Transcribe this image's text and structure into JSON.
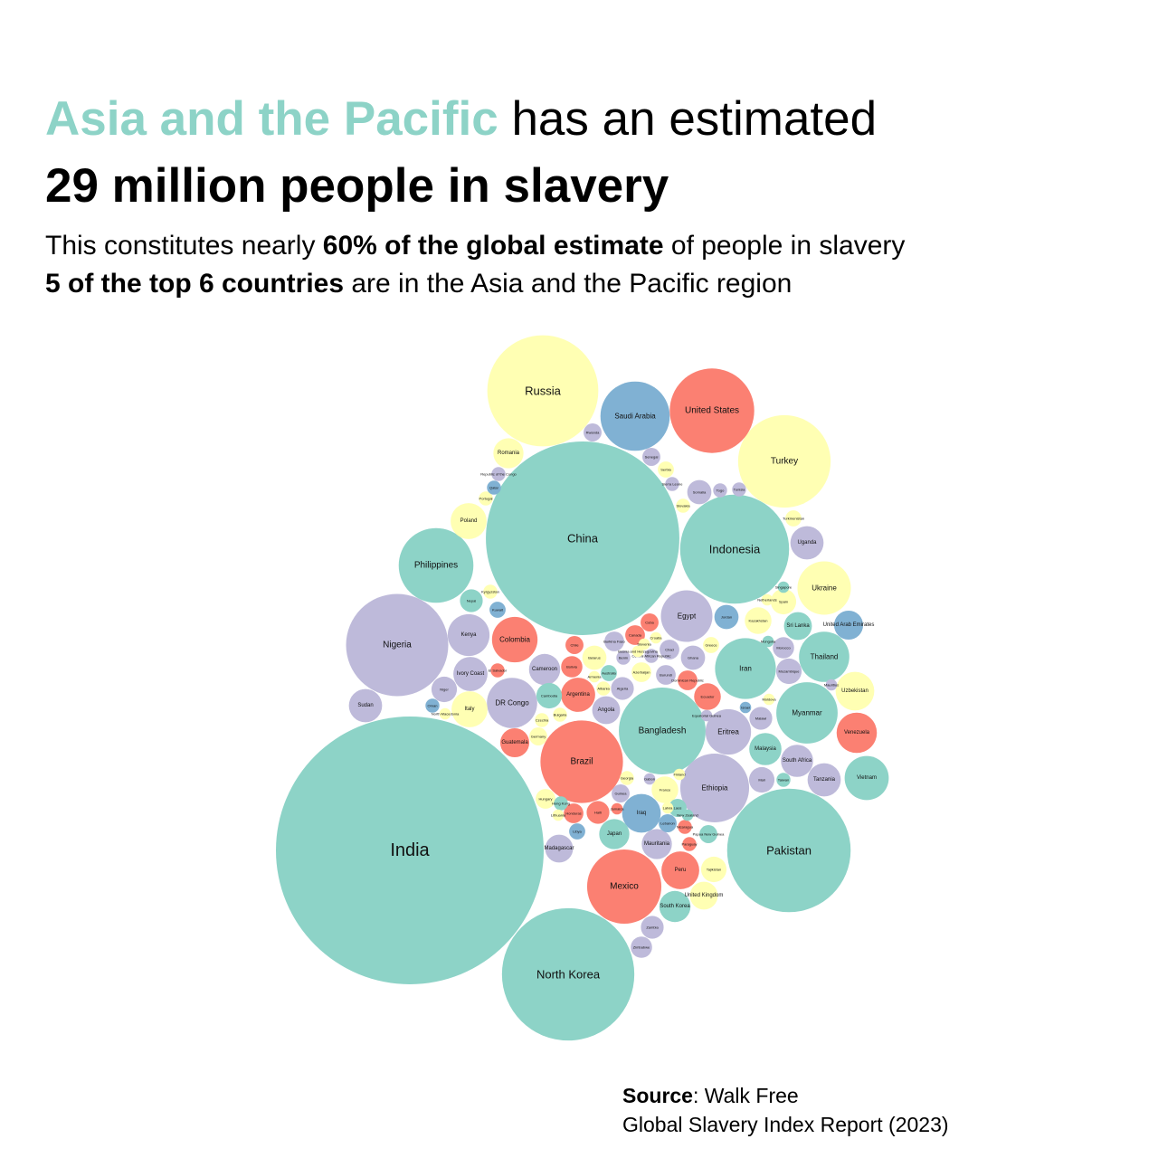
{
  "title": {
    "line1_highlight": "Asia and the Pacific",
    "line1_rest": " has an estimated",
    "line2": "29 million people in slavery"
  },
  "subtitle": {
    "line1_pre": "This constitutes nearly ",
    "line1_bold": "60% of the global estimate",
    "line1_post": " of people in slavery",
    "line2_bold": "5 of the top 6 countries",
    "line2_post": " are in the Asia and the Pacific region"
  },
  "source": {
    "label": "Source",
    "colon_text": ": Walk Free",
    "line2": "Global Slavery Index Report (2023)"
  },
  "colors": {
    "asia_pacific": "#8dd3c7",
    "europe_central_asia": "#ffffb3",
    "africa": "#bebada",
    "americas": "#fb8072",
    "arab_states": "#80b1d3"
  },
  "chart_data": {
    "type": "bubble",
    "size_encoding": "estimated number of people in modern slavery",
    "region_colors": {
      "asia_pacific": "#8dd3c7",
      "europe_central_asia": "#ffffb3",
      "africa": "#bebada",
      "americas": "#fb8072",
      "arab_states": "#80b1d3"
    },
    "bubbles": [
      {
        "name": "India",
        "region": "asia_pacific",
        "value": 11050
      },
      {
        "name": "China",
        "region": "asia_pacific",
        "value": 5770
      },
      {
        "name": "North Korea",
        "region": "asia_pacific",
        "value": 2700
      },
      {
        "name": "Pakistan",
        "region": "asia_pacific",
        "value": 2350
      },
      {
        "name": "Russia",
        "region": "europe_central_asia",
        "value": 1900
      },
      {
        "name": "Indonesia",
        "region": "asia_pacific",
        "value": 1830
      },
      {
        "name": "Nigeria",
        "region": "africa",
        "value": 1610
      },
      {
        "name": "Turkey",
        "region": "europe_central_asia",
        "value": 1320
      },
      {
        "name": "Bangladesh",
        "region": "asia_pacific",
        "value": 1160
      },
      {
        "name": "United States",
        "region": "americas",
        "value": 1100
      },
      {
        "name": "Brazil",
        "region": "americas",
        "value": 1050
      },
      {
        "name": "Mexico",
        "region": "americas",
        "value": 850
      },
      {
        "name": "Philippines",
        "region": "asia_pacific",
        "value": 860
      },
      {
        "name": "Ethiopia",
        "region": "africa",
        "value": 730
      },
      {
        "name": "Saudi Arabia",
        "region": "arab_states",
        "value": 740
      },
      {
        "name": "Myanmar",
        "region": "asia_pacific",
        "value": 580
      },
      {
        "name": "Iran",
        "region": "asia_pacific",
        "value": 570
      },
      {
        "name": "Egypt",
        "region": "africa",
        "value": 410
      },
      {
        "name": "DR Congo",
        "region": "africa",
        "value": 390
      },
      {
        "name": "Ukraine",
        "region": "europe_central_asia",
        "value": 440
      },
      {
        "name": "Thailand",
        "region": "asia_pacific",
        "value": 390
      },
      {
        "name": "Eritrea",
        "region": "africa",
        "value": 320
      },
      {
        "name": "Colombia",
        "region": "americas",
        "value": 320
      },
      {
        "name": "Vietnam",
        "region": "asia_pacific",
        "value": 300
      },
      {
        "name": "Venezuela",
        "region": "americas",
        "value": 250
      },
      {
        "name": "Uzbekistan",
        "region": "europe_central_asia",
        "value": 230
      },
      {
        "name": "Kenya",
        "region": "africa",
        "value": 270
      },
      {
        "name": "Iraq",
        "region": "arab_states",
        "value": 230
      },
      {
        "name": "Peru",
        "region": "americas",
        "value": 220
      },
      {
        "name": "Japan",
        "region": "asia_pacific",
        "value": 140
      },
      {
        "name": "Sudan",
        "region": "africa",
        "value": 170
      },
      {
        "name": "Argentina",
        "region": "americas",
        "value": 180
      },
      {
        "name": "Uganda",
        "region": "africa",
        "value": 170
      },
      {
        "name": "Poland",
        "region": "europe_central_asia",
        "value": 200
      },
      {
        "name": "Romania",
        "region": "europe_central_asia",
        "value": 140
      },
      {
        "name": "Italy",
        "region": "europe_central_asia",
        "value": 200
      },
      {
        "name": "Cameroon",
        "region": "africa",
        "value": 150
      },
      {
        "name": "Ivory Coast",
        "region": "africa",
        "value": 180
      },
      {
        "name": "Tanzania",
        "region": "africa",
        "value": 170
      },
      {
        "name": "South Korea",
        "region": "asia_pacific",
        "value": 150
      },
      {
        "name": "Guatemala",
        "region": "americas",
        "value": 130
      },
      {
        "name": "South Africa",
        "region": "africa",
        "value": 160
      },
      {
        "name": "Malaysia",
        "region": "asia_pacific",
        "value": 160
      },
      {
        "name": "Sri Lanka",
        "region": "asia_pacific",
        "value": 120
      },
      {
        "name": "Madagascar",
        "region": "africa",
        "value": 120
      },
      {
        "name": "Angola",
        "region": "africa",
        "value": 120
      },
      {
        "name": "Mozambique",
        "region": "africa",
        "value": 100
      },
      {
        "name": "Somalia",
        "region": "africa",
        "value": 90
      },
      {
        "name": "Jordan",
        "region": "arab_states",
        "value": 90
      },
      {
        "name": "United Arab Emirates",
        "region": "arab_states",
        "value": 130
      },
      {
        "name": "Ecuador",
        "region": "americas",
        "value": 110
      },
      {
        "name": "Ghana",
        "region": "africa",
        "value": 90
      },
      {
        "name": "Niger",
        "region": "africa",
        "value": 100
      },
      {
        "name": "Algeria",
        "region": "africa",
        "value": 80
      },
      {
        "name": "Mauritania",
        "region": "africa",
        "value": 140
      },
      {
        "name": "Kazakhstan",
        "region": "europe_central_asia",
        "value": 110
      },
      {
        "name": "Cambodia",
        "region": "asia_pacific",
        "value": 100
      },
      {
        "name": "Mali",
        "region": "africa",
        "value": 100
      },
      {
        "name": "Zambia",
        "region": "africa",
        "value": 80
      },
      {
        "name": "Zimbabwe",
        "region": "africa",
        "value": 70
      },
      {
        "name": "Nepal",
        "region": "asia_pacific",
        "value": 80
      },
      {
        "name": "Tajikistan",
        "region": "europe_central_asia",
        "value": 100
      },
      {
        "name": "United Kingdom",
        "region": "europe_central_asia",
        "value": 120
      },
      {
        "name": "France",
        "region": "europe_central_asia",
        "value": 110
      },
      {
        "name": "Malawi",
        "region": "africa",
        "value": 80
      },
      {
        "name": "Haiti",
        "region": "americas",
        "value": 80
      },
      {
        "name": "Bolivia",
        "region": "americas",
        "value": 70
      },
      {
        "name": "Chile",
        "region": "americas",
        "value": 50
      },
      {
        "name": "Cuba",
        "region": "americas",
        "value": 50
      },
      {
        "name": "Canada",
        "region": "americas",
        "value": 60
      },
      {
        "name": "Morocco",
        "region": "africa",
        "value": 70
      },
      {
        "name": "Belarus",
        "region": "europe_central_asia",
        "value": 90
      },
      {
        "name": "Spain",
        "region": "europe_central_asia",
        "value": 100
      },
      {
        "name": "Rwanda",
        "region": "africa",
        "value": 50
      },
      {
        "name": "Senegal",
        "region": "africa",
        "value": 50
      },
      {
        "name": "Kuwait",
        "region": "arab_states",
        "value": 40
      },
      {
        "name": "Honduras",
        "region": "americas",
        "value": 60
      },
      {
        "name": "Burundi",
        "region": "africa",
        "value": 60
      },
      {
        "name": "Dominican Republic",
        "region": "americas",
        "value": 60
      },
      {
        "name": "Azerbaijan",
        "region": "europe_central_asia",
        "value": 60
      },
      {
        "name": "Chad",
        "region": "africa",
        "value": 60
      },
      {
        "name": "Hungary",
        "region": "europe_central_asia",
        "value": 60
      },
      {
        "name": "Guinea",
        "region": "africa",
        "value": 50
      },
      {
        "name": "Laos",
        "region": "asia_pacific",
        "value": 50
      },
      {
        "name": "Lebanon",
        "region": "arab_states",
        "value": 50
      },
      {
        "name": "Serbia",
        "region": "europe_central_asia",
        "value": 40
      },
      {
        "name": "Libya",
        "region": "arab_states",
        "value": 40
      },
      {
        "name": "Papua New Guinea",
        "region": "asia_pacific",
        "value": 50
      },
      {
        "name": "Burkina Faso",
        "region": "africa",
        "value": 60
      },
      {
        "name": "Sierra Leone",
        "region": "africa",
        "value": 30
      },
      {
        "name": "Greece",
        "region": "europe_central_asia",
        "value": 40
      },
      {
        "name": "Slovakia",
        "region": "europe_central_asia",
        "value": 30
      },
      {
        "name": "Czechia",
        "region": "europe_central_asia",
        "value": 30
      },
      {
        "name": "Germany",
        "region": "europe_central_asia",
        "value": 50
      },
      {
        "name": "Taiwan",
        "region": "asia_pacific",
        "value": 30
      },
      {
        "name": "Turkmenistan",
        "region": "europe_central_asia",
        "value": 40
      },
      {
        "name": "Kyrgyzstan",
        "region": "europe_central_asia",
        "value": 30
      },
      {
        "name": "Bulgaria",
        "region": "europe_central_asia",
        "value": 30
      },
      {
        "name": "Georgia",
        "region": "europe_central_asia",
        "value": 30
      },
      {
        "name": "Oman",
        "region": "arab_states",
        "value": 30
      },
      {
        "name": "Republic of the Congo",
        "region": "africa",
        "value": 30
      },
      {
        "name": "Portugal",
        "region": "europe_central_asia",
        "value": 30
      },
      {
        "name": "Qatar",
        "region": "arab_states",
        "value": 30
      },
      {
        "name": "Togo",
        "region": "africa",
        "value": 30
      },
      {
        "name": "Tunisia",
        "region": "africa",
        "value": 30
      },
      {
        "name": "El Salvador",
        "region": "americas",
        "value": 30
      },
      {
        "name": "Benin",
        "region": "africa",
        "value": 30
      },
      {
        "name": "Albania",
        "region": "europe_central_asia",
        "value": 30
      },
      {
        "name": "Armenia",
        "region": "europe_central_asia",
        "value": 20
      },
      {
        "name": "Australia",
        "region": "asia_pacific",
        "value": 40
      },
      {
        "name": "Croatia",
        "region": "europe_central_asia",
        "value": 20
      },
      {
        "name": "Bosnia and Herzegovina",
        "region": "europe_central_asia",
        "value": 20
      },
      {
        "name": "Central African Republic",
        "region": "africa",
        "value": 30
      },
      {
        "name": "Hong Kong",
        "region": "asia_pacific",
        "value": 30
      },
      {
        "name": "Lithuania",
        "region": "europe_central_asia",
        "value": 20
      },
      {
        "name": "Israel",
        "region": "arab_states",
        "value": 20
      },
      {
        "name": "Moldova",
        "region": "europe_central_asia",
        "value": 20
      },
      {
        "name": "North Macedonia",
        "region": "europe_central_asia",
        "value": 20
      },
      {
        "name": "Nicaragua",
        "region": "americas",
        "value": 30
      },
      {
        "name": "Paraguay",
        "region": "americas",
        "value": 30
      },
      {
        "name": "Slovenia",
        "region": "europe_central_asia",
        "value": 20
      },
      {
        "name": "Finland",
        "region": "europe_central_asia",
        "value": 20
      },
      {
        "name": "New Zealand",
        "region": "asia_pacific",
        "value": 20
      },
      {
        "name": "Gabon",
        "region": "africa",
        "value": 20
      },
      {
        "name": "Jamaica",
        "region": "americas",
        "value": 20
      },
      {
        "name": "Latvia",
        "region": "europe_central_asia",
        "value": 20
      },
      {
        "name": "Equatorial Guinea",
        "region": "africa",
        "value": 20
      },
      {
        "name": "Singapore",
        "region": "asia_pacific",
        "value": 20
      },
      {
        "name": "Mongolia",
        "region": "asia_pacific",
        "value": 20
      },
      {
        "name": "Netherlands",
        "region": "europe_central_asia",
        "value": 20
      },
      {
        "name": "Mauritius",
        "region": "africa",
        "value": 20
      }
    ]
  }
}
